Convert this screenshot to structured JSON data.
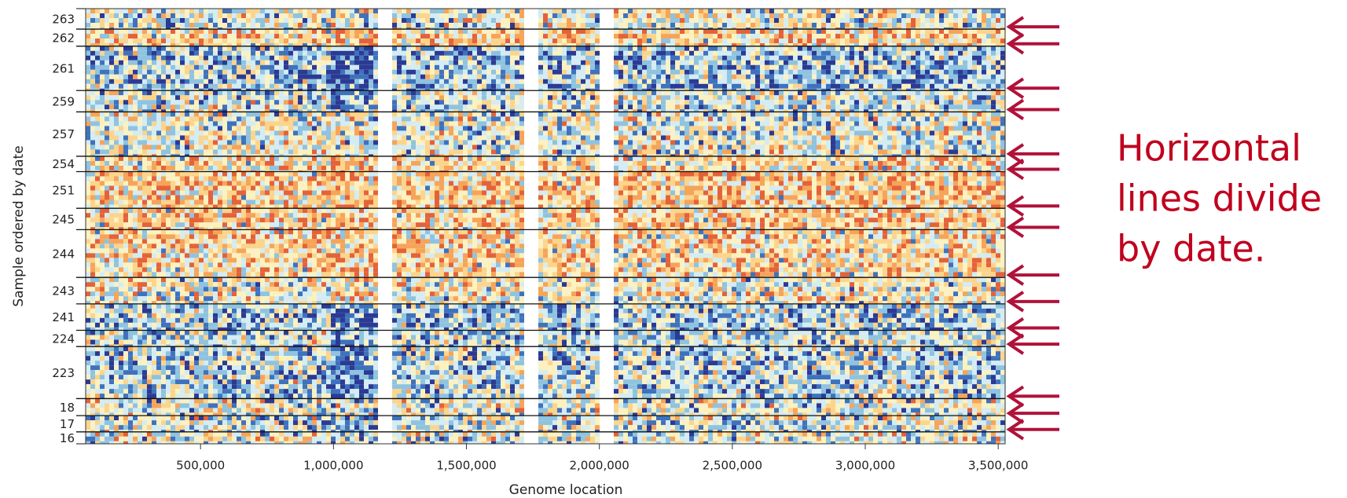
{
  "chart_data": {
    "type": "heatmap",
    "x_label": "Genome location",
    "y_label": "Sample ordered by date",
    "categories": [
      "263",
      "262",
      "261",
      "259",
      "257",
      "254",
      "251",
      "245",
      "244",
      "243",
      "241",
      "224",
      "223",
      "18",
      "17",
      "16"
    ],
    "xlim": [
      68000,
      3526000
    ],
    "xticks": [
      {
        "value": 500000,
        "label": "500,000"
      },
      {
        "value": 1000000,
        "label": "1,000,000"
      },
      {
        "value": 1500000,
        "label": "1,500,000"
      },
      {
        "value": 2000000,
        "label": "2,000,000"
      },
      {
        "value": 2500000,
        "label": "2,500,000"
      },
      {
        "value": 3000000,
        "label": "3,000,000"
      },
      {
        "value": 3500000,
        "label": "3,500,000"
      }
    ],
    "annotation": [
      "Horizontal",
      "lines divide",
      "by date."
    ]
  }
}
